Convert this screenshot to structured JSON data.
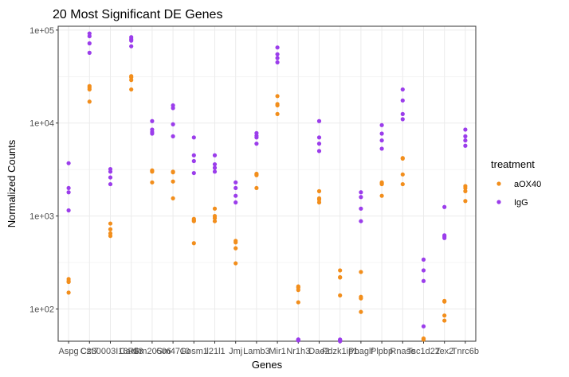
{
  "chart_data": {
    "type": "scatter",
    "title": "20 Most Significant DE Genes",
    "xlabel": "Genes",
    "ylabel": "Normalized Counts",
    "y_scale": "log10",
    "ylim": [
      45,
      110000
    ],
    "y_ticks": [
      {
        "value": 100,
        "label": "1e+02"
      },
      {
        "value": 1000,
        "label": "1e+03"
      },
      {
        "value": 10000,
        "label": "1e+04"
      },
      {
        "value": 100000,
        "label": "1e+05"
      }
    ],
    "grid": true,
    "legend": {
      "title": "treatment",
      "position": "right"
    },
    "colors": {
      "aOX40": "#F28E1C",
      "IgG": "#9B3DEB"
    },
    "categories": [
      "Aspg",
      "Cst7",
      "C230003I16Rik",
      "Car13",
      "Gm20506",
      "Gm4710",
      "Gosm1",
      "Il21l1",
      "Jmj",
      "Lamb3",
      "Mir1",
      "Nr1h3",
      "Dae2",
      "Pdzk1ip1",
      "Phaglf",
      "Plpbp",
      "Rnase",
      "Tsc1d22",
      "Tex2",
      "Tnrc6b"
    ],
    "series": [
      {
        "name": "aOX40",
        "values": [
          [
            210,
            200,
            195,
            150
          ],
          [
            25000,
            24000,
            23000,
            17000
          ],
          [
            830,
            720,
            650,
            610
          ],
          [
            32000,
            31000,
            29000,
            23000
          ],
          [
            3100,
            3050,
            3000,
            2300
          ],
          [
            3000,
            2950,
            2350,
            1550
          ],
          [
            930,
            900,
            880,
            510
          ],
          [
            1200,
            1000,
            950,
            880
          ],
          [
            540,
            520,
            450,
            310
          ],
          [
            2850,
            2800,
            2750,
            2000
          ],
          [
            19500,
            16000,
            15500,
            12500
          ],
          [
            175,
            170,
            160,
            118
          ],
          [
            1850,
            1550,
            1500,
            1400
          ],
          [
            260,
            220,
            218,
            140
          ],
          [
            250,
            135,
            130,
            93
          ],
          [
            2300,
            2250,
            2200,
            1650
          ],
          [
            4200,
            4150,
            2800,
            2200
          ],
          [
            48,
            48,
            47,
            47
          ],
          [
            122,
            120,
            85,
            75
          ],
          [
            2100,
            2000,
            1850,
            1450
          ]
        ]
      },
      {
        "name": "IgG",
        "values": [
          [
            3700,
            2000,
            1800,
            1150
          ],
          [
            92000,
            86000,
            72000,
            57000
          ],
          [
            3200,
            3000,
            2600,
            2200
          ],
          [
            84000,
            80000,
            77000,
            67000
          ],
          [
            10500,
            8500,
            8000,
            7700
          ],
          [
            15500,
            14500,
            9700,
            7200
          ],
          [
            7000,
            4500,
            3900,
            2900
          ],
          [
            4500,
            3600,
            3300,
            3000
          ],
          [
            2300,
            2000,
            1650,
            1400
          ],
          [
            7800,
            7300,
            7000,
            6000
          ],
          [
            65000,
            55000,
            50000,
            45000
          ],
          [
            47,
            47,
            46,
            46
          ],
          [
            10500,
            7000,
            6000,
            5000
          ],
          [
            47,
            46,
            46,
            45
          ],
          [
            1800,
            1600,
            1200,
            880
          ],
          [
            9500,
            7700,
            6500,
            5300
          ],
          [
            23000,
            17500,
            12500,
            11000
          ],
          [
            340,
            260,
            200,
            65
          ],
          [
            1250,
            620,
            600,
            580
          ],
          [
            8500,
            7200,
            6500,
            5700
          ]
        ]
      }
    ]
  }
}
